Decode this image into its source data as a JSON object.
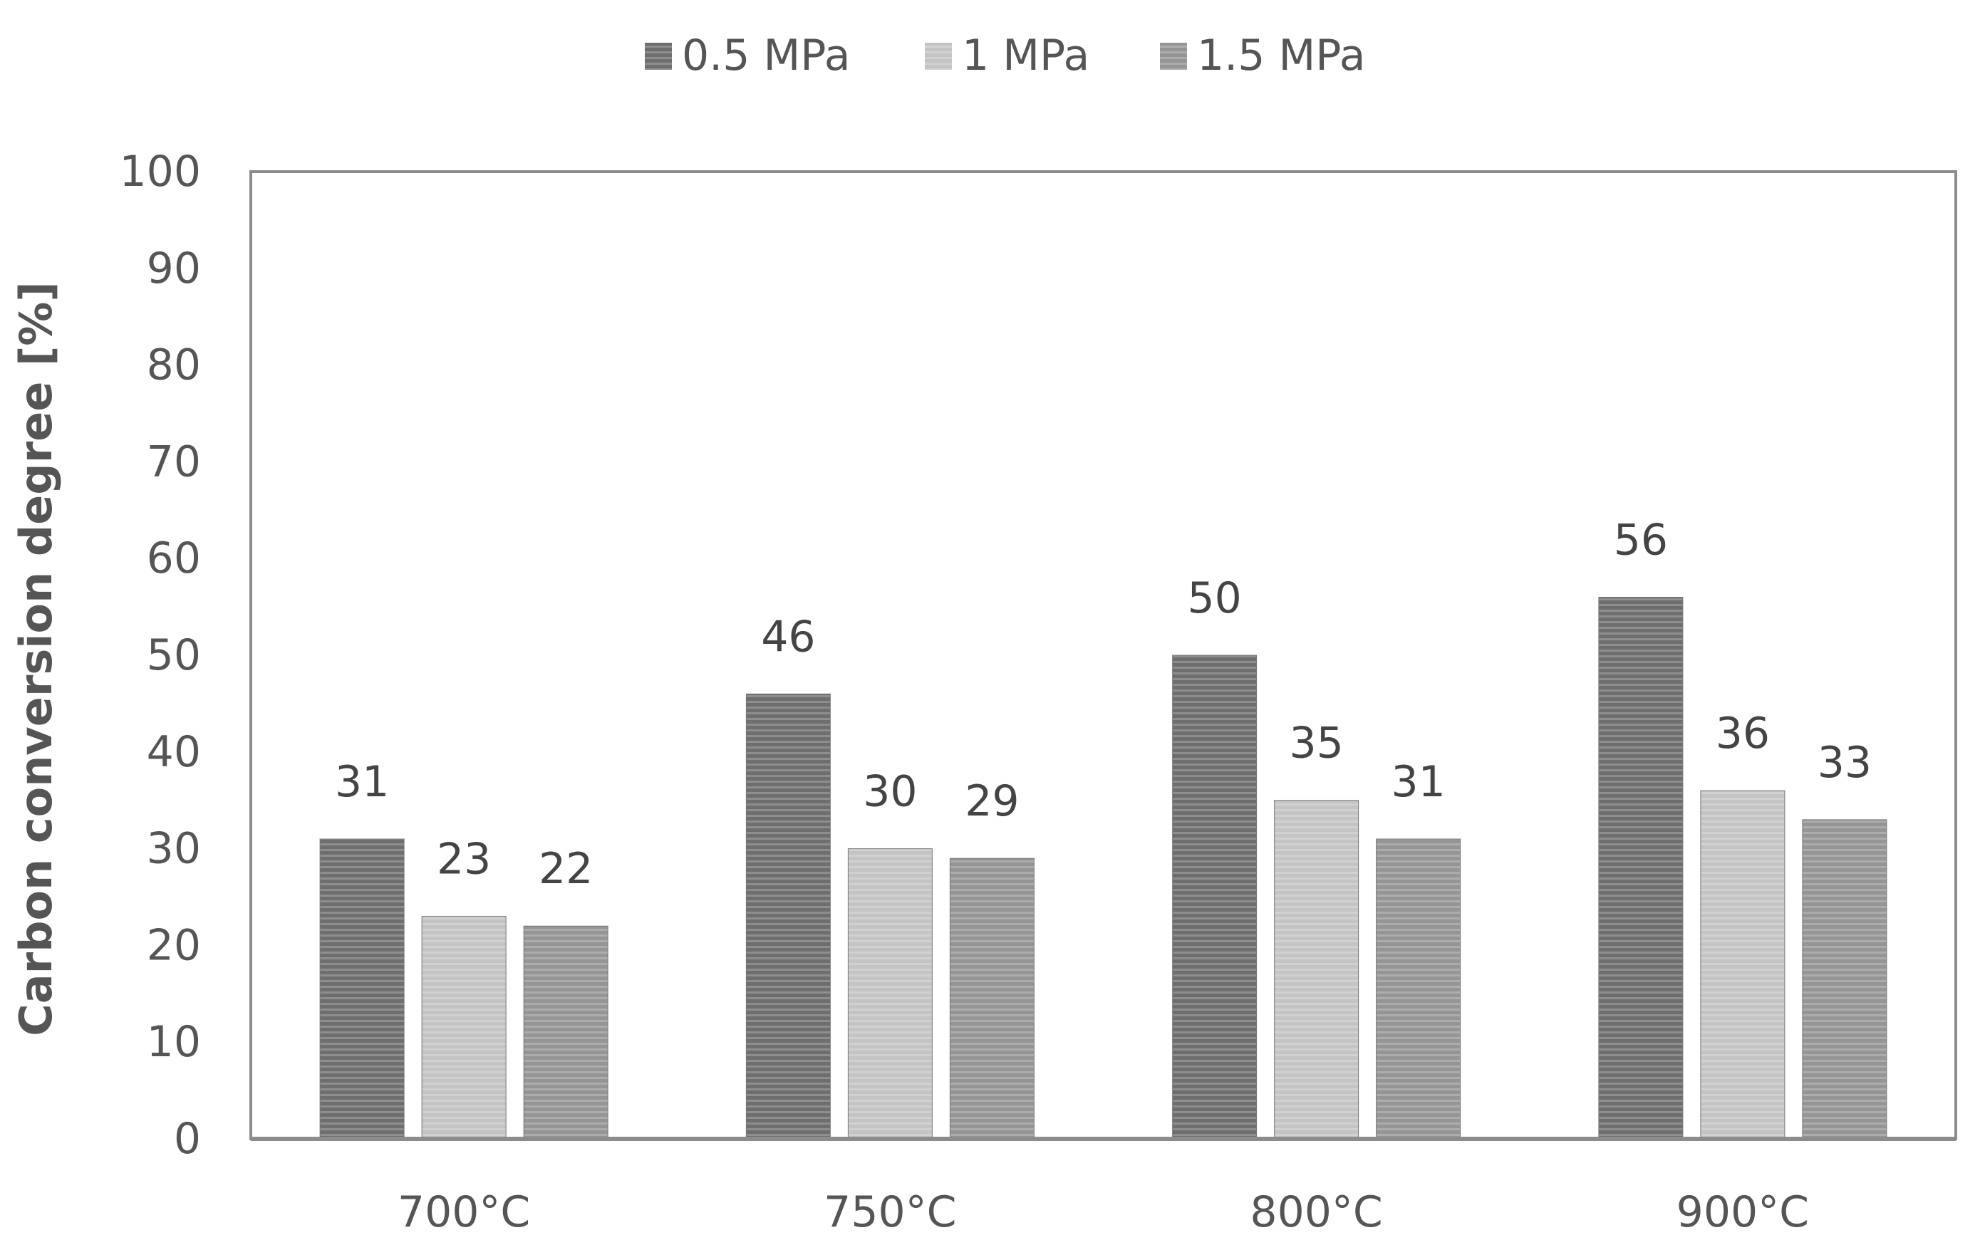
{
  "chart_data": {
    "type": "bar",
    "categories": [
      "700°C",
      "750°C",
      "800°C",
      "900°C"
    ],
    "series": [
      {
        "name": "0.5 MPa",
        "values": [
          31,
          46,
          50,
          56
        ],
        "color": "#6e6e6e"
      },
      {
        "name": "1 MPa",
        "values": [
          23,
          30,
          35,
          36
        ],
        "color": "#c4c4c4"
      },
      {
        "name": "1.5 MPa",
        "values": [
          22,
          29,
          31,
          33
        ],
        "color": "#959595"
      }
    ],
    "data_labels": [
      [
        "31",
        "46",
        "50",
        "56"
      ],
      [
        "23",
        "30",
        "35",
        "36"
      ],
      [
        "22",
        "29",
        "31",
        "33"
      ]
    ],
    "yticks": [
      "0",
      "10",
      "20",
      "30",
      "40",
      "50",
      "60",
      "70",
      "80",
      "90",
      "100"
    ],
    "ylabel": "Carbon conversion degree [%]",
    "xlabel": "",
    "title": "",
    "ylim": [
      0,
      100
    ],
    "legend_position": "top-center",
    "grid": false,
    "bar_pattern": "horizontal-stripes"
  }
}
